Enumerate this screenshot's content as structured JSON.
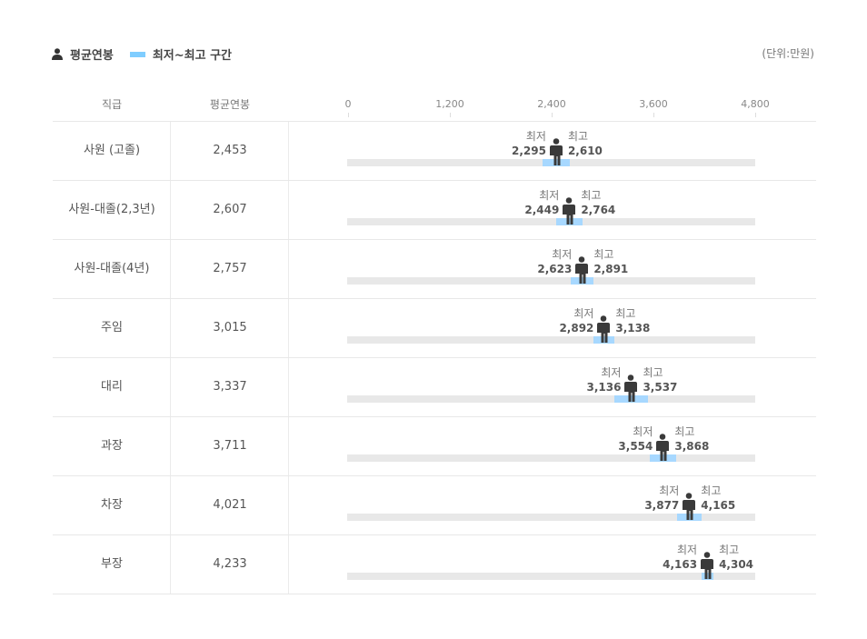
{
  "legend": {
    "avg": "평균연봉",
    "range": "최저~최고 구간",
    "unit": "(단위:만원)"
  },
  "colors": {
    "range": "#a7d8ff",
    "track": "#e8e8e8",
    "figure": "#3a3a3a"
  },
  "chart_data": {
    "type": "range-dot",
    "headers": [
      "직급",
      "평균연봉"
    ],
    "xlim": [
      0,
      4800
    ],
    "ticks": [
      "0",
      "1,200",
      "2,400",
      "3,600",
      "4,800"
    ],
    "min_label": "최저",
    "max_label": "최고",
    "rows": [
      {
        "grade": "사원 (고졸)",
        "avg": 2453,
        "avg_label": "2,453",
        "min": 2295,
        "min_label": "2,295",
        "max": 2610,
        "max_label": "2,610"
      },
      {
        "grade": "사원-대졸(2,3년)",
        "avg": 2607,
        "avg_label": "2,607",
        "min": 2449,
        "min_label": "2,449",
        "max": 2764,
        "max_label": "2,764"
      },
      {
        "grade": "사원-대졸(4년)",
        "avg": 2757,
        "avg_label": "2,757",
        "min": 2623,
        "min_label": "2,623",
        "max": 2891,
        "max_label": "2,891"
      },
      {
        "grade": "주임",
        "avg": 3015,
        "avg_label": "3,015",
        "min": 2892,
        "min_label": "2,892",
        "max": 3138,
        "max_label": "3,138"
      },
      {
        "grade": "대리",
        "avg": 3337,
        "avg_label": "3,337",
        "min": 3136,
        "min_label": "3,136",
        "max": 3537,
        "max_label": "3,537"
      },
      {
        "grade": "과장",
        "avg": 3711,
        "avg_label": "3,711",
        "min": 3554,
        "min_label": "3,554",
        "max": 3868,
        "max_label": "3,868"
      },
      {
        "grade": "차장",
        "avg": 4021,
        "avg_label": "4,021",
        "min": 3877,
        "min_label": "3,877",
        "max": 4165,
        "max_label": "4,165"
      },
      {
        "grade": "부장",
        "avg": 4233,
        "avg_label": "4,233",
        "min": 4163,
        "min_label": "4,163",
        "max": 4304,
        "max_label": "4,304"
      }
    ]
  }
}
